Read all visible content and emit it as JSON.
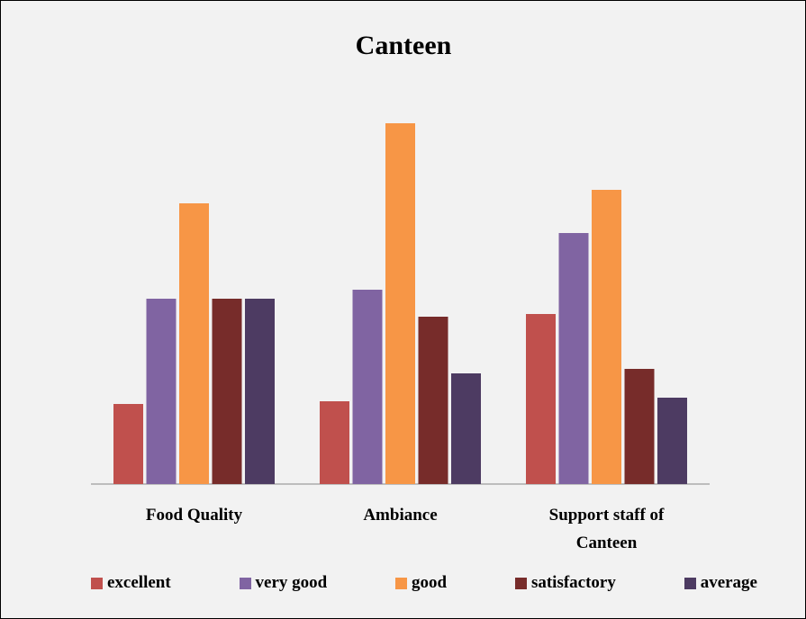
{
  "chart_data": {
    "type": "bar",
    "title": "Canteen",
    "categories": [
      "Food Quality",
      "Ambiance",
      "Support staff  of Canteen"
    ],
    "series": [
      {
        "name": "excellent",
        "color": "#c0504d",
        "values": [
          89,
          92,
          189
        ]
      },
      {
        "name": "very good",
        "color": "#8064a2",
        "values": [
          206,
          216,
          279
        ]
      },
      {
        "name": "good",
        "color": "#f79646",
        "values": [
          312,
          401,
          327
        ]
      },
      {
        "name": "satisfactory",
        "color": "#772c2a",
        "values": [
          206,
          186,
          128
        ]
      },
      {
        "name": "average",
        "color": "#4d3b62",
        "values": [
          206,
          123,
          96
        ]
      }
    ]
  }
}
